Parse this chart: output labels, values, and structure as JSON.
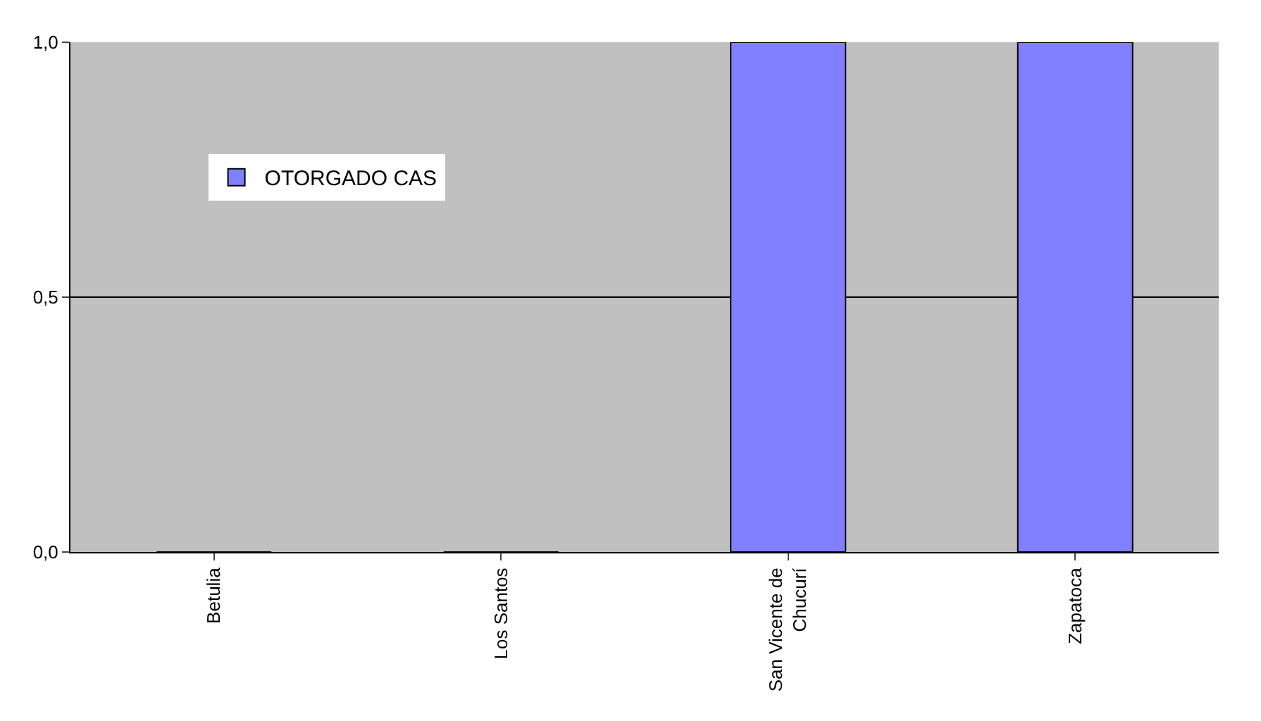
{
  "chart_data": {
    "type": "bar",
    "categories": [
      "Betulia",
      "Los Santos",
      "San Vicente de\nChucurí",
      "Zapatoca"
    ],
    "series": [
      {
        "name": "OTORGADO CAS",
        "color": "#8080ff",
        "values": [
          0,
          0,
          1,
          1
        ]
      }
    ],
    "ylim": [
      0,
      1.0
    ],
    "yticks": [
      {
        "value": 0,
        "label": "0,0"
      },
      {
        "value": 0.5,
        "label": "0,5"
      },
      {
        "value": 1.0,
        "label": "1,0"
      }
    ],
    "grid": "y",
    "legend": "top left"
  }
}
